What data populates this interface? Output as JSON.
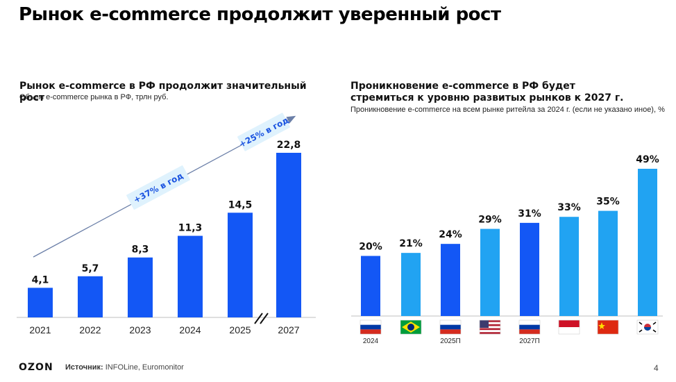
{
  "page": {
    "title": "Рынок e-commerce продолжит уверенный рост",
    "logo": "OZON",
    "source_label": "Источник:",
    "source_text": "INFOLine, Euromonitor",
    "page_number": "4"
  },
  "colors": {
    "bar_dark": "#1357f5",
    "bar_light": "#21a3f2",
    "arrow": "#6b7fa8",
    "badge_bg": "#dff2fd",
    "badge_text": "#1a53e0"
  },
  "chart_data": [
    {
      "type": "bar",
      "title": "Рынок e-commerce в РФ продолжит значительный рост",
      "subtitle": "Объем e-commerce рынка в РФ, трлн руб.",
      "categories": [
        "2021",
        "2022",
        "2023",
        "2024",
        "2025",
        "2027"
      ],
      "values": [
        4.1,
        5.7,
        8.3,
        11.3,
        14.5,
        22.8
      ],
      "value_labels": [
        "4,1",
        "5,7",
        "8,3",
        "11,3",
        "14,5",
        "22,8"
      ],
      "ylim": [
        0,
        25
      ],
      "axis_break_between": [
        "2025",
        "2027"
      ],
      "annotations": [
        "+37% в год",
        "+25% в год"
      ]
    },
    {
      "type": "bar",
      "title": "Проникновение e-commerce в РФ будет стремиться к уровню развитых рынков к 2027 г.",
      "subtitle": "Проникновение e-commerce на всем рынке ритейла за 2024 г. (если не указано иное), %",
      "categories": [
        "Россия 2024",
        "Бразилия",
        "Россия 2025П",
        "США",
        "Россия 2027П",
        "Индонезия",
        "Китай",
        "Южная Корея"
      ],
      "flag_icons": [
        "russia-flag-icon",
        "brazil-flag-icon",
        "russia-flag-icon",
        "usa-flag-icon",
        "russia-flag-icon",
        "indonesia-flag-icon",
        "china-flag-icon",
        "south-korea-flag-icon"
      ],
      "flag_captions": [
        "2024",
        "",
        "2025П",
        "",
        "2027П",
        "",
        "",
        ""
      ],
      "values": [
        20,
        21,
        24,
        29,
        31,
        33,
        35,
        49
      ],
      "value_labels": [
        "20%",
        "21%",
        "24%",
        "29%",
        "31%",
        "33%",
        "35%",
        "49%"
      ],
      "highlight": [
        true,
        false,
        true,
        false,
        true,
        false,
        false,
        false
      ],
      "ylim": [
        0,
        50
      ]
    }
  ]
}
